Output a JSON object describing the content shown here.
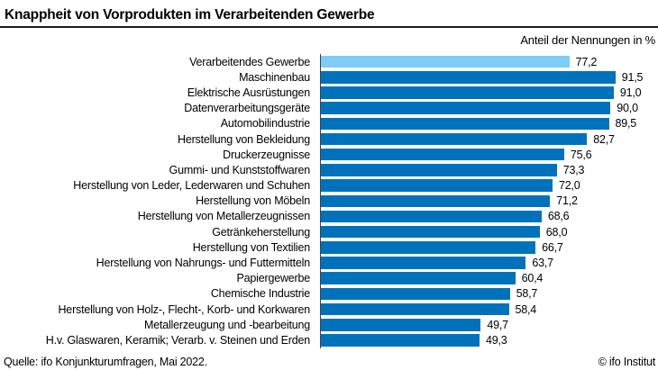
{
  "chart_data": {
    "type": "bar",
    "orientation": "horizontal",
    "title": "Knappheit von Vorprodukten im Verarbeitenden Gewerbe",
    "units_label": "Anteil der Nennungen in %",
    "xlim": [
      0,
      100
    ],
    "grid": false,
    "legend": false,
    "highlight_index": 0,
    "decimal_separator": ",",
    "colors": {
      "bar_default": "#0072bc",
      "bar_highlight": "#7dcdf8",
      "axis": "#404040",
      "title_rule": "#1a1a1a",
      "text": "#000000"
    },
    "categories": [
      "Verarbeitendes Gewerbe",
      "Maschinenbau",
      "Elektrische Ausrüstungen",
      "Datenverarbeitungsgeräte",
      "Automobilindustrie",
      "Herstellung von Bekleidung",
      "Druckerzeugnisse",
      "Gummi- und Kunststoffwaren",
      "Herstellung von Leder, Lederwaren und Schuhen",
      "Herstellung von Möbeln",
      "Herstellung von Metallerzeugnissen",
      "Getränkeherstellung",
      "Herstellung von Textilien",
      "Herstellung von Nahrungs- und Futtermitteln",
      "Papiergewerbe",
      "Chemische Industrie",
      "Herstellung von Holz-, Flecht-, Korb- und Korkwaren",
      "Metallerzeugung und -bearbeitung",
      "H.v. Glaswaren, Keramik; Verarb. v. Steinen und Erden"
    ],
    "values": [
      77.2,
      91.5,
      91.0,
      90.0,
      89.5,
      82.7,
      75.6,
      73.3,
      72.0,
      71.2,
      68.6,
      68.0,
      66.7,
      63.7,
      60.4,
      58.7,
      58.4,
      49.7,
      49.3
    ]
  },
  "footer": {
    "source": "Quelle: ifo Konjunkturumfragen, Mai 2022.",
    "copyright": "© ifo Institut"
  }
}
